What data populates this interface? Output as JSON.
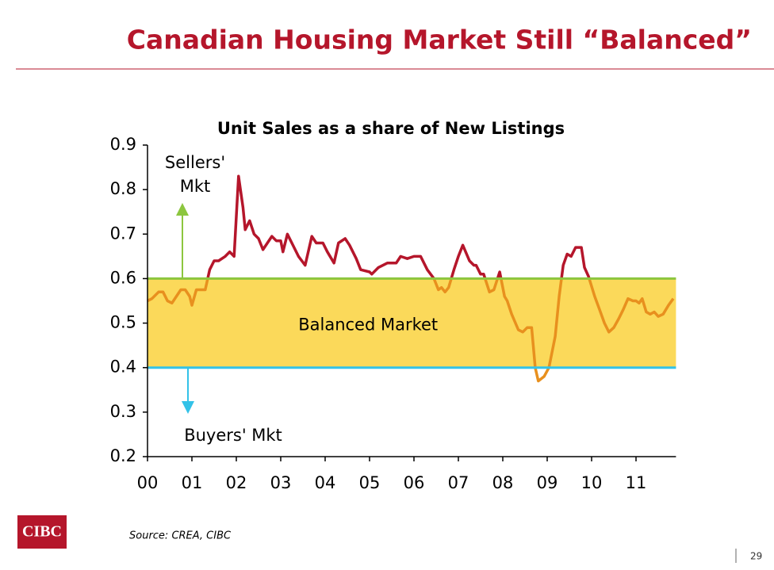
{
  "header": {
    "title": "Canadian Housing Market Still “Balanced”"
  },
  "chart_data": {
    "type": "line",
    "title": "Unit Sales as a share of New Listings",
    "x": [
      0,
      0.1,
      0.25,
      0.35,
      0.45,
      0.55,
      0.65,
      0.75,
      0.85,
      0.95,
      1.0,
      1.1,
      1.3,
      1.4,
      1.5,
      1.6,
      1.75,
      1.85,
      1.95,
      2.05,
      2.15,
      2.2,
      2.3,
      2.4,
      2.5,
      2.6,
      2.7,
      2.8,
      2.9,
      3.0,
      3.05,
      3.15,
      3.25,
      3.4,
      3.55,
      3.7,
      3.8,
      3.95,
      4.05,
      4.2,
      4.3,
      4.45,
      4.55,
      4.7,
      4.8,
      5.0,
      5.05,
      5.2,
      5.4,
      5.6,
      5.7,
      5.85,
      6.0,
      6.15,
      6.3,
      6.45,
      6.55,
      6.62,
      6.7,
      6.78,
      6.9,
      7.0,
      7.1,
      7.25,
      7.35,
      7.4,
      7.5,
      7.57,
      7.7,
      7.8,
      7.93,
      8.04,
      8.1,
      8.2,
      8.35,
      8.45,
      8.55,
      8.65,
      8.73,
      8.8,
      8.93,
      9.04,
      9.18,
      9.27,
      9.36,
      9.45,
      9.54,
      9.64,
      9.77,
      9.84,
      9.93,
      10.07,
      10.18,
      10.29,
      10.39,
      10.5,
      10.61,
      10.71,
      10.82,
      10.93,
      11.0,
      11.07,
      11.14,
      11.23,
      11.32,
      11.41,
      11.5,
      11.61,
      11.73,
      11.84
    ],
    "values": [
      0.55,
      0.555,
      0.57,
      0.57,
      0.55,
      0.545,
      0.56,
      0.575,
      0.575,
      0.56,
      0.54,
      0.575,
      0.575,
      0.62,
      0.64,
      0.64,
      0.65,
      0.66,
      0.65,
      0.83,
      0.76,
      0.71,
      0.73,
      0.7,
      0.69,
      0.665,
      0.68,
      0.695,
      0.685,
      0.685,
      0.66,
      0.7,
      0.68,
      0.65,
      0.63,
      0.695,
      0.68,
      0.68,
      0.66,
      0.635,
      0.68,
      0.69,
      0.675,
      0.645,
      0.62,
      0.615,
      0.61,
      0.625,
      0.635,
      0.635,
      0.65,
      0.645,
      0.65,
      0.65,
      0.62,
      0.6,
      0.575,
      0.58,
      0.57,
      0.58,
      0.62,
      0.65,
      0.675,
      0.64,
      0.63,
      0.63,
      0.61,
      0.61,
      0.57,
      0.575,
      0.615,
      0.56,
      0.55,
      0.52,
      0.485,
      0.48,
      0.49,
      0.49,
      0.4,
      0.37,
      0.38,
      0.4,
      0.47,
      0.56,
      0.63,
      0.655,
      0.65,
      0.67,
      0.67,
      0.625,
      0.605,
      0.56,
      0.53,
      0.5,
      0.48,
      0.49,
      0.51,
      0.53,
      0.555,
      0.55,
      0.55,
      0.545,
      0.555,
      0.525,
      0.52,
      0.525,
      0.515,
      0.52,
      0.54,
      0.555
    ],
    "color": "#e8901e",
    "above_color": "#b5162b",
    "band": {
      "range": [
        0.4,
        0.6
      ],
      "color": "#fbd95a",
      "upper_color": "#8cc63f",
      "lower_color": "#33c2e8",
      "label": "Balanced Market"
    },
    "annotations": {
      "sellers": [
        "Sellers'",
        "Mkt"
      ],
      "buyers": "Buyers' Mkt"
    },
    "xlim": [
      0,
      11.9
    ],
    "xticks": [
      {
        "value": 0,
        "label": "00"
      },
      {
        "value": 1,
        "label": "01"
      },
      {
        "value": 2,
        "label": "02"
      },
      {
        "value": 3,
        "label": "03"
      },
      {
        "value": 4,
        "label": "04"
      },
      {
        "value": 5,
        "label": "05"
      },
      {
        "value": 6,
        "label": "06"
      },
      {
        "value": 7,
        "label": "07"
      },
      {
        "value": 8,
        "label": "08"
      },
      {
        "value": 9,
        "label": "09"
      },
      {
        "value": 10,
        "label": "10"
      },
      {
        "value": 11,
        "label": "11"
      }
    ],
    "ylim": [
      0.2,
      0.9
    ],
    "yticks": [
      0.2,
      0.3,
      0.4,
      0.5,
      0.6,
      0.7,
      0.8,
      0.9
    ]
  },
  "footer": {
    "source": "Source: CREA, CIBC",
    "logo": "CIBC",
    "page": "29"
  }
}
